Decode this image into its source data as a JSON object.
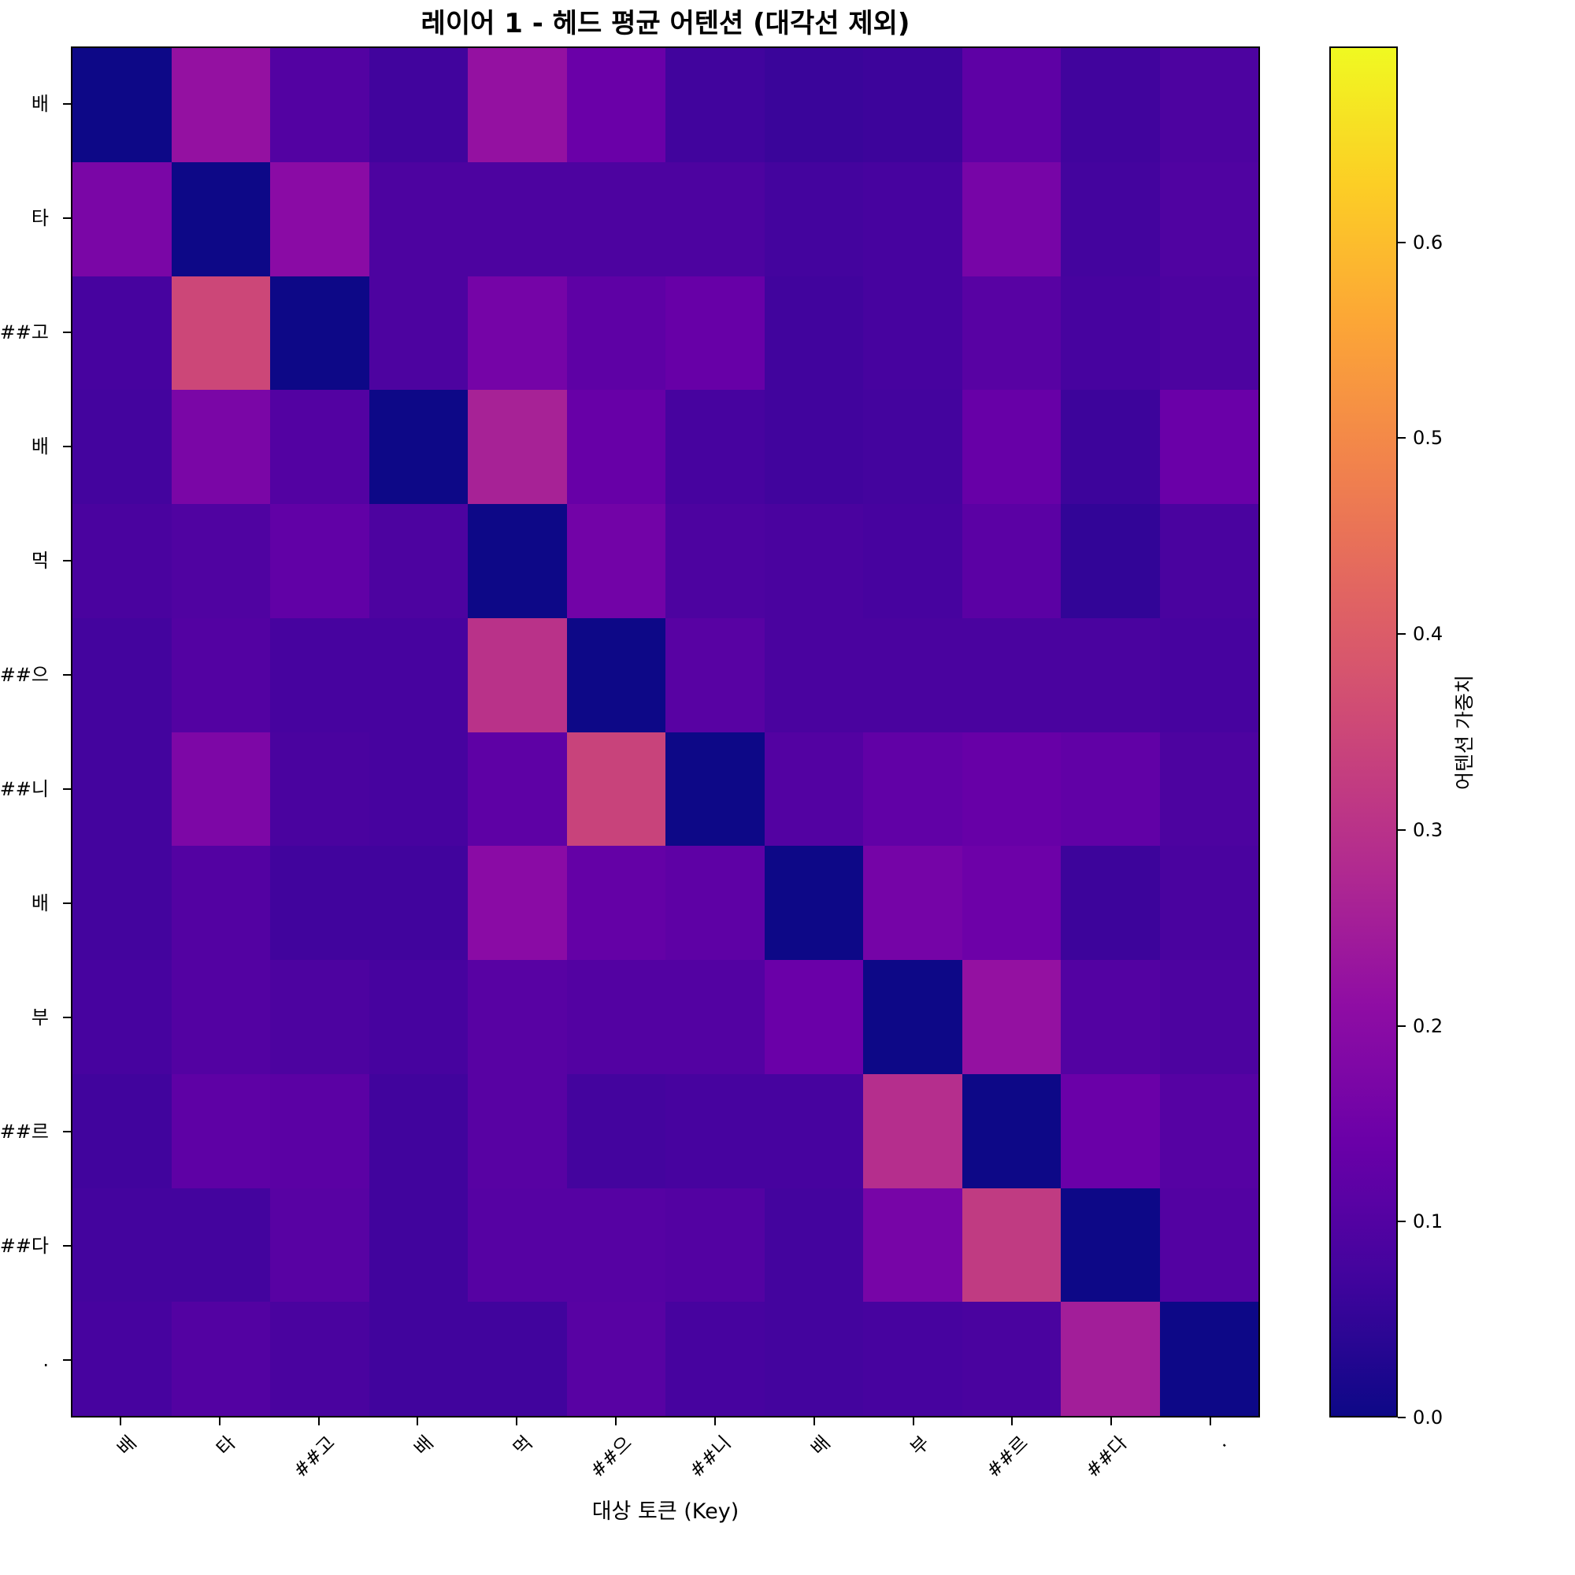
{
  "chart_data": {
    "type": "heatmap",
    "title": "레이어 1 - 헤드 평균 어텐션 (대각선 제외)",
    "xlabel": "대상 토큰 (Key)",
    "ylabel": "",
    "x_labels": [
      "배",
      "타",
      "##고",
      "배",
      "먹",
      "##으",
      "##니",
      "배",
      "부",
      "##르",
      "##다",
      "."
    ],
    "y_labels": [
      "배",
      "타",
      "##고",
      "배",
      "먹",
      "##으",
      "##니",
      "배",
      "부",
      "##르",
      "##다",
      "."
    ],
    "colormap": "plasma",
    "vmin": 0.0,
    "vmax": 0.7,
    "colorbar": {
      "label": "어텐션 가중치",
      "ticks": [
        0.0,
        0.1,
        0.2,
        0.3,
        0.4,
        0.5,
        0.6
      ],
      "tick_labels": [
        "0.0",
        "0.1",
        "0.2",
        "0.3",
        "0.4",
        "0.5",
        "0.6"
      ]
    },
    "values": [
      [
        0.0,
        0.22,
        0.1,
        0.07,
        0.22,
        0.14,
        0.07,
        0.06,
        0.065,
        0.12,
        0.07,
        0.09
      ],
      [
        0.17,
        0.0,
        0.2,
        0.09,
        0.09,
        0.09,
        0.09,
        0.075,
        0.08,
        0.165,
        0.075,
        0.095
      ],
      [
        0.08,
        0.35,
        0.0,
        0.09,
        0.16,
        0.12,
        0.135,
        0.07,
        0.08,
        0.11,
        0.08,
        0.09
      ],
      [
        0.075,
        0.17,
        0.1,
        0.0,
        0.26,
        0.135,
        0.08,
        0.07,
        0.075,
        0.135,
        0.065,
        0.14
      ],
      [
        0.085,
        0.095,
        0.125,
        0.09,
        0.0,
        0.155,
        0.09,
        0.085,
        0.08,
        0.115,
        0.05,
        0.085
      ],
      [
        0.075,
        0.1,
        0.08,
        0.08,
        0.3,
        0.0,
        0.11,
        0.085,
        0.085,
        0.085,
        0.085,
        0.08
      ],
      [
        0.075,
        0.175,
        0.085,
        0.08,
        0.12,
        0.34,
        0.0,
        0.1,
        0.125,
        0.135,
        0.125,
        0.09
      ],
      [
        0.075,
        0.1,
        0.07,
        0.07,
        0.2,
        0.13,
        0.12,
        0.0,
        0.16,
        0.145,
        0.065,
        0.085
      ],
      [
        0.08,
        0.1,
        0.09,
        0.08,
        0.11,
        0.1,
        0.1,
        0.14,
        0.0,
        0.22,
        0.1,
        0.09
      ],
      [
        0.07,
        0.12,
        0.115,
        0.07,
        0.11,
        0.075,
        0.08,
        0.08,
        0.29,
        0.0,
        0.14,
        0.105
      ],
      [
        0.075,
        0.075,
        0.11,
        0.07,
        0.105,
        0.105,
        0.1,
        0.075,
        0.165,
        0.32,
        0.0,
        0.1
      ],
      [
        0.08,
        0.1,
        0.085,
        0.07,
        0.07,
        0.11,
        0.08,
        0.075,
        0.08,
        0.085,
        0.25,
        0.0
      ]
    ]
  }
}
